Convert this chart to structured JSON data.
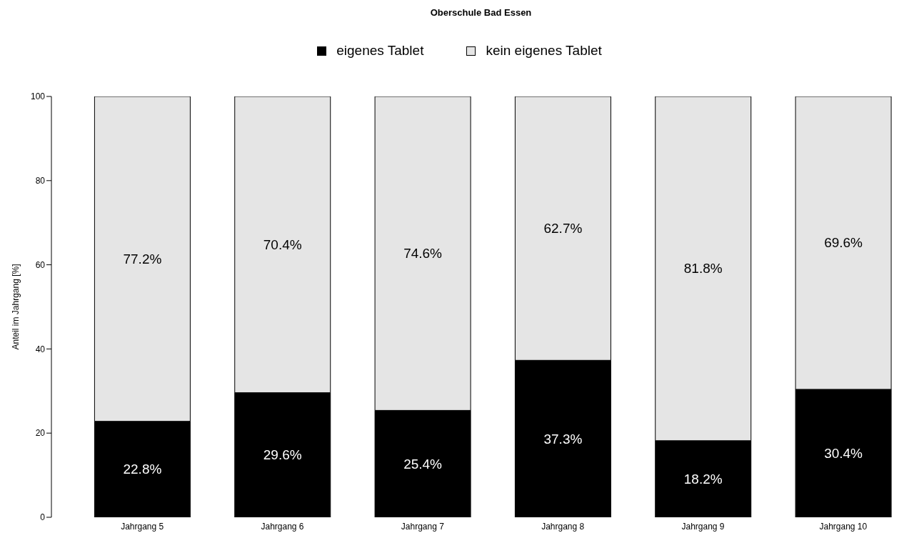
{
  "chart_data": {
    "type": "bar",
    "title": "Oberschule Bad Essen",
    "ylabel": "Anteil im Jahrgang [%]",
    "categories": [
      "Jahrgang 5",
      "Jahrgang 6",
      "Jahrgang 7",
      "Jahrgang 8",
      "Jahrgang 9",
      "Jahrgang 10"
    ],
    "series": [
      {
        "name": "eigenes Tablet",
        "color": "#000000",
        "values": [
          22.8,
          29.6,
          25.4,
          37.3,
          18.2,
          30.4
        ],
        "value_labels": [
          "22.8%",
          "29.6%",
          "25.4%",
          "37.3%",
          "18.2%",
          "30.4%"
        ]
      },
      {
        "name": "kein eigenes Tablet",
        "color": "#e5e5e5",
        "values": [
          77.2,
          70.4,
          74.6,
          62.7,
          81.8,
          69.6
        ],
        "value_labels": [
          "77.2%",
          "70.4%",
          "74.6%",
          "62.7%",
          "81.8%",
          "69.6%"
        ]
      }
    ],
    "stacked": true,
    "ylim": [
      0,
      100
    ],
    "yticks": [
      0,
      20,
      40,
      60,
      80,
      100
    ],
    "grid": false,
    "legend": "top"
  }
}
